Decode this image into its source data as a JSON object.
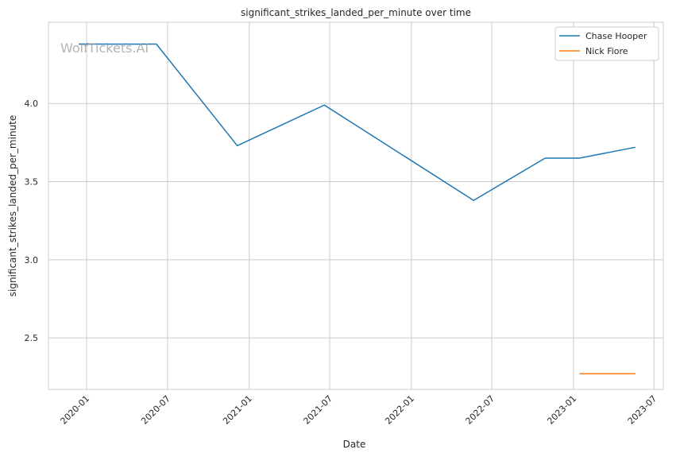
{
  "watermark": "WolfTickets.AI",
  "chart_data": {
    "type": "line",
    "title": "significant_strikes_landed_per_minute over time",
    "xlabel": "Date",
    "ylabel": "significant_strikes_landed_per_minute",
    "x_ticks": [
      "2020-01",
      "2020-07",
      "2021-01",
      "2021-07",
      "2022-01",
      "2022-07",
      "2023-01",
      "2023-07"
    ],
    "y_ticks": [
      "2.5",
      "3.0",
      "3.5",
      "4.0"
    ],
    "xlim": [
      "2019-10-07",
      "2023-07-22"
    ],
    "ylim": [
      2.17,
      4.52
    ],
    "grid": true,
    "legend_position": "top-right",
    "series": [
      {
        "name": "Chase Hooper",
        "color": "#1f77b4",
        "points": [
          {
            "x": "2019-12-14",
            "y": 4.38
          },
          {
            "x": "2020-06-06",
            "y": 4.38
          },
          {
            "x": "2020-12-05",
            "y": 3.73
          },
          {
            "x": "2021-06-19",
            "y": 3.99
          },
          {
            "x": "2022-05-21",
            "y": 3.38
          },
          {
            "x": "2022-10-29",
            "y": 3.65
          },
          {
            "x": "2023-01-14",
            "y": 3.65
          },
          {
            "x": "2023-05-20",
            "y": 3.72
          }
        ]
      },
      {
        "name": "Nick Fiore",
        "color": "#ff7f0e",
        "points": [
          {
            "x": "2023-01-14",
            "y": 2.27
          },
          {
            "x": "2023-05-20",
            "y": 2.27
          }
        ]
      }
    ]
  }
}
